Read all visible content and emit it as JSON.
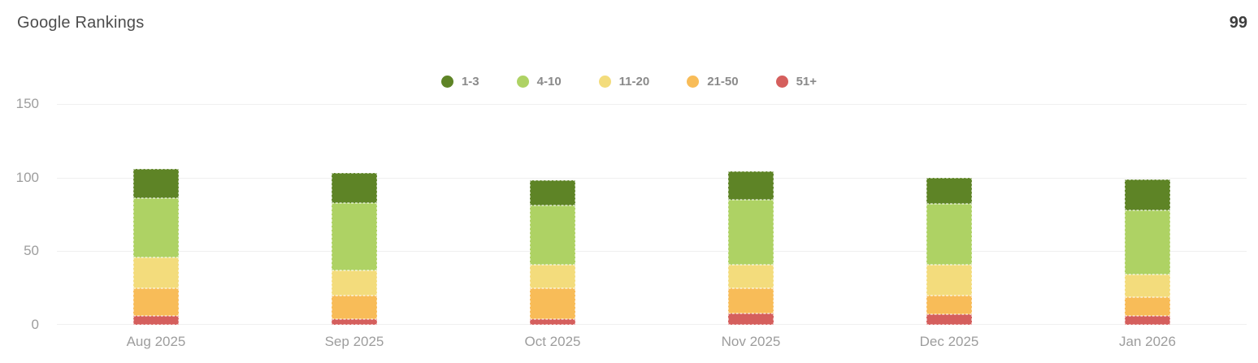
{
  "header": {
    "title": "Google Rankings",
    "total": "99"
  },
  "chart_data": {
    "type": "bar",
    "stacked": true,
    "title": "Google Rankings",
    "categories": [
      "Aug 2025",
      "Sep 2025",
      "Oct 2025",
      "Nov 2025",
      "Dec 2025",
      "Jan 2026"
    ],
    "series": [
      {
        "name": "1-3",
        "color": "#5e8426",
        "values": [
          20,
          20,
          17,
          19,
          18,
          21
        ]
      },
      {
        "name": "4-10",
        "color": "#aed264",
        "values": [
          40,
          46,
          40,
          44,
          41,
          44
        ]
      },
      {
        "name": "11-20",
        "color": "#f3dc7c",
        "values": [
          21,
          17,
          16,
          16,
          21,
          15
        ]
      },
      {
        "name": "21-50",
        "color": "#f8bc58",
        "values": [
          19,
          16,
          21,
          17,
          13,
          13
        ]
      },
      {
        "name": "51+",
        "color": "#d55f5d",
        "values": [
          6,
          4,
          4,
          8,
          7,
          6
        ]
      }
    ],
    "totals": [
      106,
      103,
      98,
      104,
      100,
      99
    ],
    "xlabel": "",
    "ylabel": "",
    "ylim": [
      0,
      150
    ],
    "yticks": [
      150,
      100,
      50,
      0
    ],
    "grid": true,
    "legend_position": "top-center",
    "grid_color": "#f0f0f0"
  }
}
